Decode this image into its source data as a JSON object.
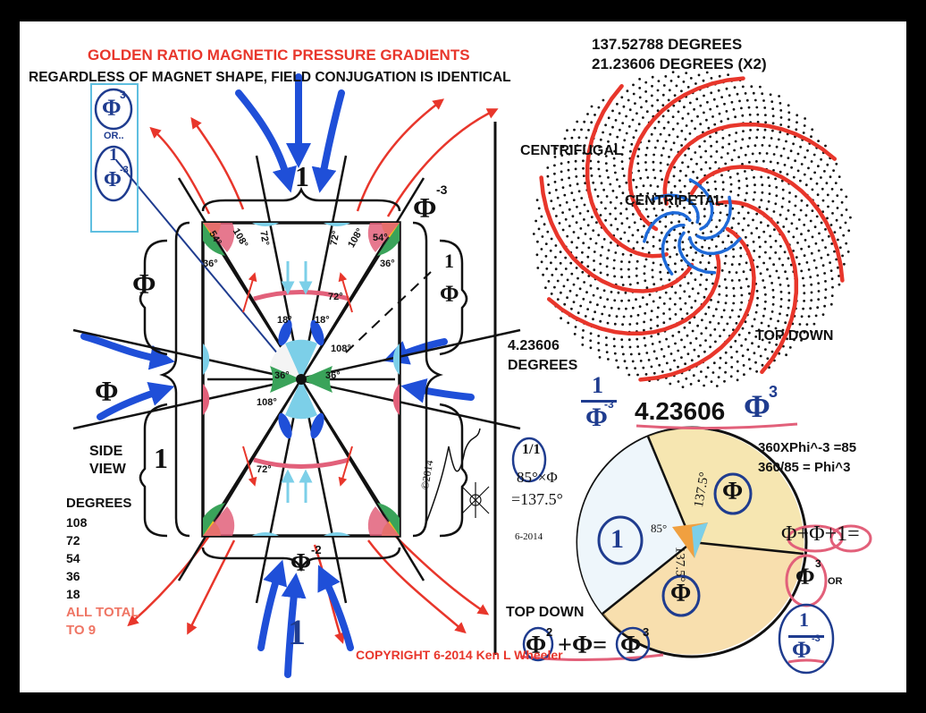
{
  "header": {
    "title": "GOLDEN RATIO MAGNETIC PRESSURE GRADIENTS",
    "subtitle": "REGARDLESS OF MAGNET SHAPE, FIELD CONJUGATION IS IDENTICAL"
  },
  "angles": {
    "line1": "137.52788 DEGREES",
    "line2": "21.23606 DEGREES (X2)",
    "small": "4.23606",
    "small_unit": "DEGREES"
  },
  "spiral": {
    "centrifugal": "CENTRIFUGAL",
    "centripetal": "CENTRIPETAL",
    "top_down": "TOP DOWN"
  },
  "side_view": {
    "label_line1": "SIDE",
    "label_line2": "VIEW",
    "top_number": "1",
    "bottom_number": "1",
    "left_top_symbol": "Φ",
    "left_mid_symbol": "Φ",
    "left_bottom_number": "1",
    "corner_angles": [
      "54°",
      "36°",
      "108°",
      "72°",
      "72°",
      "108°",
      "54°",
      "36°"
    ],
    "center_angles": [
      "18°",
      "18°",
      "36°",
      "36°",
      "108°",
      "108°",
      "72°",
      "72°"
    ]
  },
  "degrees_list": {
    "heading": "DEGREES",
    "items": [
      "108",
      "72",
      "54",
      "36",
      "18"
    ],
    "total_line1": "ALL TOTAL",
    "total_line2": "TO 9"
  },
  "formulas": {
    "box_top": "Φ",
    "box_top_exp": "3",
    "box_or": "OR..",
    "box_num": "1",
    "box_den": "Φ",
    "box_den_exp": "-3",
    "phi_neg3": "Φ",
    "phi_neg3_exp": "-3",
    "phi_neg2": "Φ",
    "phi_neg2_exp": "-2",
    "right_frac_num": "1",
    "right_frac_den": "Φ",
    "big_frac_num": "1",
    "big_frac_den": "Φ",
    "big_frac_exp": "-3",
    "big_value": "4.23606",
    "big_phi": "Φ",
    "big_phi_exp": "3",
    "eq1": "360XPhi^-3 =85",
    "eq2": "360/85 = Phi^3",
    "left_calc_frac": "1/1",
    "left_calc_1": "85°×Φ",
    "left_calc_2": "=137.5°",
    "sum_formula": "Φ+Φ+1=",
    "sum_result": "Φ",
    "sum_result_exp": "3",
    "or_label": "OR",
    "final_num": "1",
    "final_den": "Φ",
    "final_exp": "-3",
    "bottom_formula_a": "Φ",
    "bottom_formula_b": "+Φ=",
    "bottom_formula_c": "Φ",
    "bottom_formula_exp1": "2",
    "bottom_formula_exp2": "3"
  },
  "pie": {
    "slice_center": "85°",
    "slice_a": "137.5°",
    "slice_b": "137.5°",
    "region_left": "1",
    "region_right": "Φ",
    "region_bottom": "Φ",
    "top_down": "TOP DOWN"
  },
  "signature": {
    "year": "6-2014",
    "copyright_mark": "©2014"
  },
  "footer": {
    "copyright": "COPYRIGHT 6-2014 Ken L Wheeler"
  },
  "colors": {
    "red": "#e8362b",
    "blue": "#1f4fd8",
    "navy": "#1f3c8f",
    "pink": "#e2607a",
    "salmon": "#ef7564",
    "cyan": "#7ccfe8",
    "green": "#3aa35a",
    "yellow": "#f3c21c",
    "orange_fill": "#f2c46b"
  }
}
